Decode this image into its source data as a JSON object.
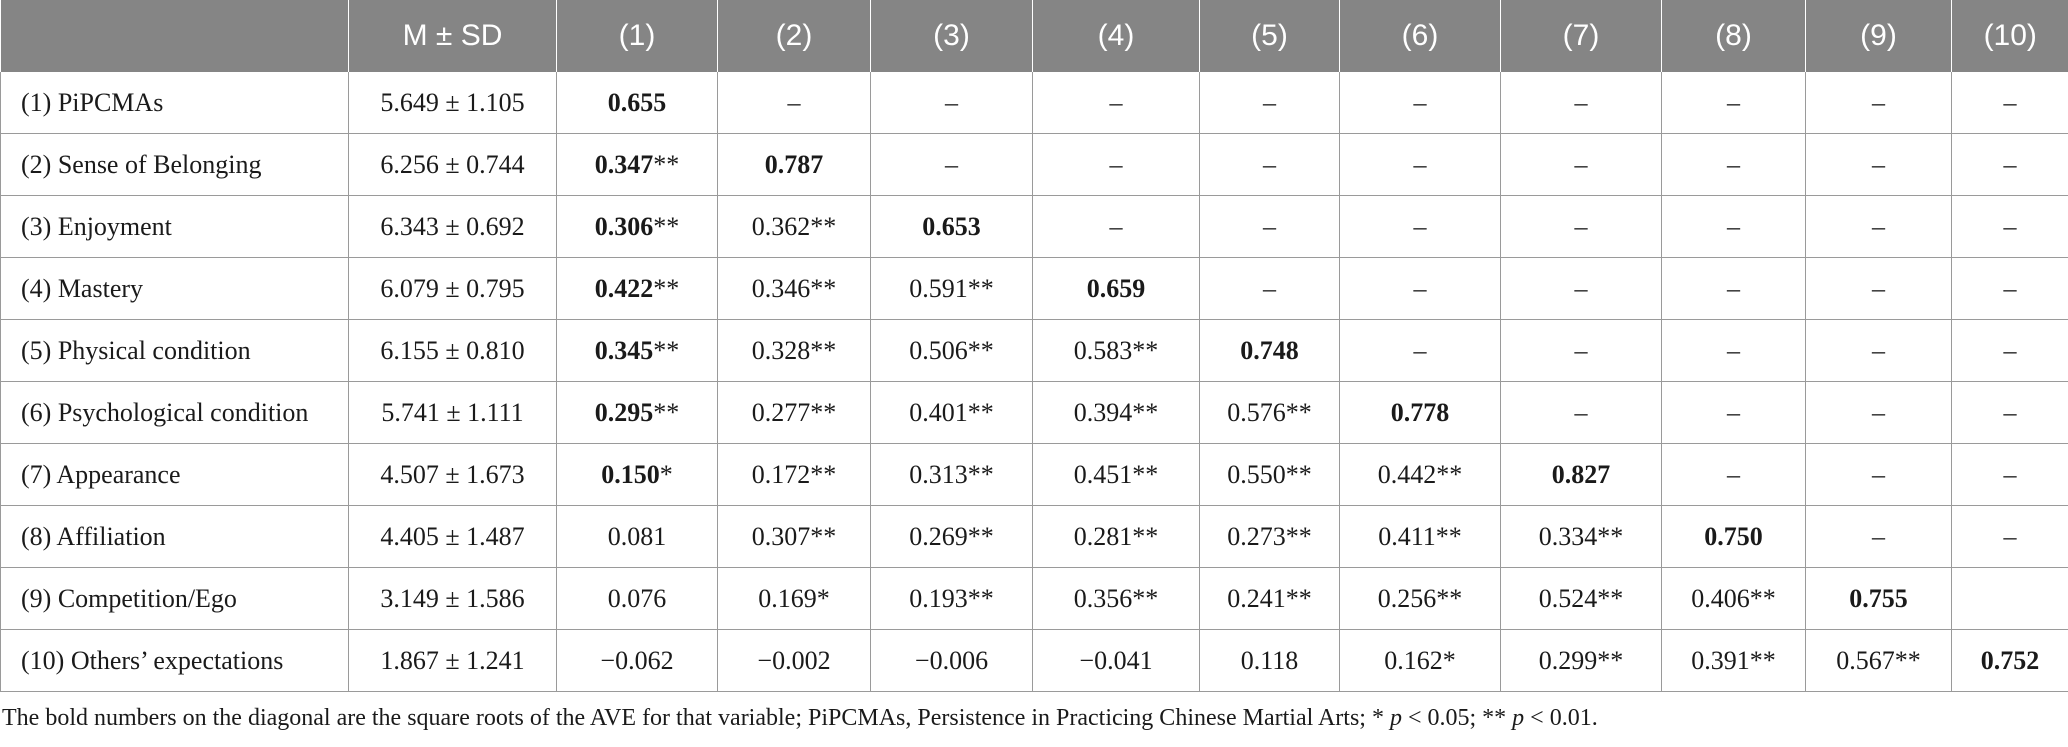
{
  "header": [
    "",
    "M ± SD",
    "(1)",
    "(2)",
    "(3)",
    "(4)",
    "(5)",
    "(6)",
    "(7)",
    "(8)",
    "(9)",
    "(10)"
  ],
  "rows": [
    {
      "label": "(1) PiPCMAs",
      "msd": "5.649 ± 1.105",
      "cells": [
        {
          "v": "0.655",
          "s": "",
          "b": true
        },
        {
          "v": "–",
          "s": ""
        },
        {
          "v": "–",
          "s": ""
        },
        {
          "v": "–",
          "s": ""
        },
        {
          "v": "–",
          "s": ""
        },
        {
          "v": "–",
          "s": ""
        },
        {
          "v": "–",
          "s": ""
        },
        {
          "v": "–",
          "s": ""
        },
        {
          "v": "–",
          "s": ""
        },
        {
          "v": "–",
          "s": ""
        }
      ]
    },
    {
      "label": "(2) Sense of Belonging",
      "msd": "6.256 ± 0.744",
      "cells": [
        {
          "v": "0.347",
          "s": "**",
          "b": true
        },
        {
          "v": "0.787",
          "s": "",
          "b": true
        },
        {
          "v": "–",
          "s": ""
        },
        {
          "v": "–",
          "s": ""
        },
        {
          "v": "–",
          "s": ""
        },
        {
          "v": "–",
          "s": ""
        },
        {
          "v": "–",
          "s": ""
        },
        {
          "v": "–",
          "s": ""
        },
        {
          "v": "–",
          "s": ""
        },
        {
          "v": "–",
          "s": ""
        }
      ]
    },
    {
      "label": "(3) Enjoyment",
      "msd": "6.343 ± 0.692",
      "cells": [
        {
          "v": "0.306",
          "s": "**",
          "b": true
        },
        {
          "v": "0.362",
          "s": "**"
        },
        {
          "v": "0.653",
          "s": "",
          "b": true
        },
        {
          "v": "–",
          "s": ""
        },
        {
          "v": "–",
          "s": ""
        },
        {
          "v": "–",
          "s": ""
        },
        {
          "v": "–",
          "s": ""
        },
        {
          "v": "–",
          "s": ""
        },
        {
          "v": "–",
          "s": ""
        },
        {
          "v": "–",
          "s": ""
        }
      ]
    },
    {
      "label": "(4) Mastery",
      "msd": "6.079 ± 0.795",
      "cells": [
        {
          "v": "0.422",
          "s": "**",
          "b": true
        },
        {
          "v": "0.346",
          "s": "**"
        },
        {
          "v": "0.591",
          "s": "**"
        },
        {
          "v": "0.659",
          "s": "",
          "b": true
        },
        {
          "v": "–",
          "s": ""
        },
        {
          "v": "–",
          "s": ""
        },
        {
          "v": "–",
          "s": ""
        },
        {
          "v": "–",
          "s": ""
        },
        {
          "v": "–",
          "s": ""
        },
        {
          "v": "–",
          "s": ""
        }
      ]
    },
    {
      "label": "(5) Physical condition",
      "msd": "6.155 ± 0.810",
      "cells": [
        {
          "v": "0.345",
          "s": "**",
          "b": true
        },
        {
          "v": "0.328",
          "s": "**"
        },
        {
          "v": "0.506",
          "s": "**"
        },
        {
          "v": "0.583",
          "s": "**"
        },
        {
          "v": "0.748",
          "s": "",
          "b": true
        },
        {
          "v": "–",
          "s": ""
        },
        {
          "v": "–",
          "s": ""
        },
        {
          "v": "–",
          "s": ""
        },
        {
          "v": "–",
          "s": ""
        },
        {
          "v": "–",
          "s": ""
        }
      ]
    },
    {
      "label": "(6) Psychological condition",
      "msd": "5.741 ± 1.111",
      "cells": [
        {
          "v": "0.295",
          "s": "**",
          "b": true
        },
        {
          "v": "0.277",
          "s": "**"
        },
        {
          "v": "0.401",
          "s": "**"
        },
        {
          "v": "0.394",
          "s": "**"
        },
        {
          "v": "0.576",
          "s": "**"
        },
        {
          "v": "0.778",
          "s": "",
          "b": true
        },
        {
          "v": "–",
          "s": ""
        },
        {
          "v": "–",
          "s": ""
        },
        {
          "v": "–",
          "s": ""
        },
        {
          "v": "–",
          "s": ""
        }
      ]
    },
    {
      "label": "(7) Appearance",
      "msd": "4.507 ± 1.673",
      "cells": [
        {
          "v": "0.150",
          "s": "*",
          "b": true
        },
        {
          "v": "0.172",
          "s": "**"
        },
        {
          "v": "0.313",
          "s": "**"
        },
        {
          "v": "0.451",
          "s": "**"
        },
        {
          "v": "0.550",
          "s": "**"
        },
        {
          "v": "0.442",
          "s": "**"
        },
        {
          "v": "0.827",
          "s": "",
          "b": true
        },
        {
          "v": "–",
          "s": ""
        },
        {
          "v": "–",
          "s": ""
        },
        {
          "v": "–",
          "s": ""
        }
      ]
    },
    {
      "label": "(8) Affiliation",
      "msd": "4.405 ± 1.487",
      "cells": [
        {
          "v": "0.081",
          "s": ""
        },
        {
          "v": "0.307",
          "s": "**"
        },
        {
          "v": "0.269",
          "s": "**"
        },
        {
          "v": "0.281",
          "s": "**"
        },
        {
          "v": "0.273",
          "s": "**"
        },
        {
          "v": "0.411",
          "s": "**"
        },
        {
          "v": "0.334",
          "s": "**"
        },
        {
          "v": "0.750",
          "s": "",
          "b": true
        },
        {
          "v": "–",
          "s": ""
        },
        {
          "v": "–",
          "s": ""
        }
      ]
    },
    {
      "label": "(9) Competition/Ego",
      "msd": "3.149 ± 1.586",
      "cells": [
        {
          "v": "0.076",
          "s": ""
        },
        {
          "v": "0.169",
          "s": "*"
        },
        {
          "v": "0.193",
          "s": "**"
        },
        {
          "v": "0.356",
          "s": "**"
        },
        {
          "v": "0.241",
          "s": "**"
        },
        {
          "v": "0.256",
          "s": "**"
        },
        {
          "v": "0.524",
          "s": "**"
        },
        {
          "v": "0.406",
          "s": "**"
        },
        {
          "v": "0.755",
          "s": "",
          "b": true
        },
        {
          "v": "",
          "s": ""
        }
      ]
    },
    {
      "label": "(10) Others’ expectations",
      "msd": "1.867 ± 1.241",
      "cells": [
        {
          "v": "−0.062",
          "s": ""
        },
        {
          "v": "−0.002",
          "s": ""
        },
        {
          "v": "−0.006",
          "s": ""
        },
        {
          "v": "−0.041",
          "s": ""
        },
        {
          "v": "0.118",
          "s": ""
        },
        {
          "v": "0.162",
          "s": "*"
        },
        {
          "v": "0.299",
          "s": "**"
        },
        {
          "v": "0.391",
          "s": "**"
        },
        {
          "v": "0.567",
          "s": "**"
        },
        {
          "v": "0.752",
          "s": "",
          "b": true
        }
      ]
    }
  ],
  "footnote": {
    "lead": "The bold numbers on the diagonal are the square roots of the AVE for that variable; PiPCMAs, Persistence in Practicing Chinese Martial Arts; * ",
    "p1_sym": "p",
    "p1_rest": " < 0.05; ** ",
    "p2_sym": "p",
    "p2_rest": " < 0.01."
  }
}
